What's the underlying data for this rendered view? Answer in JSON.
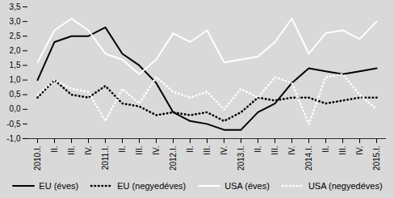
{
  "chart_data": {
    "type": "line",
    "categories": [
      "2010.I.",
      "II.",
      "III.",
      "IV.",
      "2011.I.",
      "II.",
      "III.",
      "IV.",
      "2012.I.",
      "II.",
      "III.",
      "IV.",
      "2013.I.",
      "II.",
      "III.",
      "IV.",
      "2014.I.",
      "II.",
      "III.",
      "IV.",
      "2015.I."
    ],
    "series": [
      {
        "name": "EU (éves)",
        "color": "#000000",
        "line_style": "solid",
        "values": [
          1.0,
          2.3,
          2.5,
          2.5,
          2.8,
          1.9,
          1.5,
          0.9,
          -0.1,
          -0.4,
          -0.5,
          -0.7,
          -0.7,
          -0.1,
          0.2,
          0.9,
          1.4,
          1.3,
          1.2,
          1.3,
          1.4
        ]
      },
      {
        "name": "EU (negyedéves)",
        "color": "#000000",
        "line_style": "dotted",
        "values": [
          0.4,
          1.0,
          0.5,
          0.4,
          0.8,
          0.2,
          0.1,
          -0.2,
          -0.1,
          -0.2,
          -0.1,
          -0.4,
          -0.1,
          0.4,
          0.3,
          0.4,
          0.4,
          0.2,
          0.3,
          0.4,
          0.4
        ]
      },
      {
        "name": "USA (éves)",
        "color": "#ffffff",
        "line_style": "solid",
        "values": [
          1.6,
          2.7,
          3.1,
          2.7,
          1.9,
          1.7,
          1.2,
          1.7,
          2.6,
          2.3,
          2.7,
          1.6,
          1.7,
          1.8,
          2.3,
          3.1,
          1.9,
          2.6,
          2.7,
          2.4,
          3.0
        ]
      },
      {
        "name": "USA (negyedéves)",
        "color": "#ffffff",
        "line_style": "dotted",
        "values": [
          0.5,
          1.0,
          0.7,
          0.6,
          -0.4,
          0.7,
          0.2,
          1.1,
          0.6,
          0.4,
          0.6,
          0.0,
          0.7,
          0.4,
          1.1,
          0.9,
          -0.5,
          1.1,
          1.2,
          0.5,
          0.0
        ]
      }
    ],
    "ylim": [
      -1.0,
      3.5
    ],
    "yticks": [
      {
        "value": -1.0,
        "label": "-1,0"
      },
      {
        "value": -0.5,
        "label": "-0,5"
      },
      {
        "value": 0.0,
        "label": "0,0"
      },
      {
        "value": 0.5,
        "label": "0,5"
      },
      {
        "value": 1.0,
        "label": "1,0"
      },
      {
        "value": 1.5,
        "label": "1,5"
      },
      {
        "value": 2.0,
        "label": "2,0"
      },
      {
        "value": 2.5,
        "label": "2,5"
      },
      {
        "value": 3.0,
        "label": "3,0"
      },
      {
        "value": 3.5,
        "label": "3,5"
      }
    ],
    "grid": false,
    "legend": "bottom"
  }
}
